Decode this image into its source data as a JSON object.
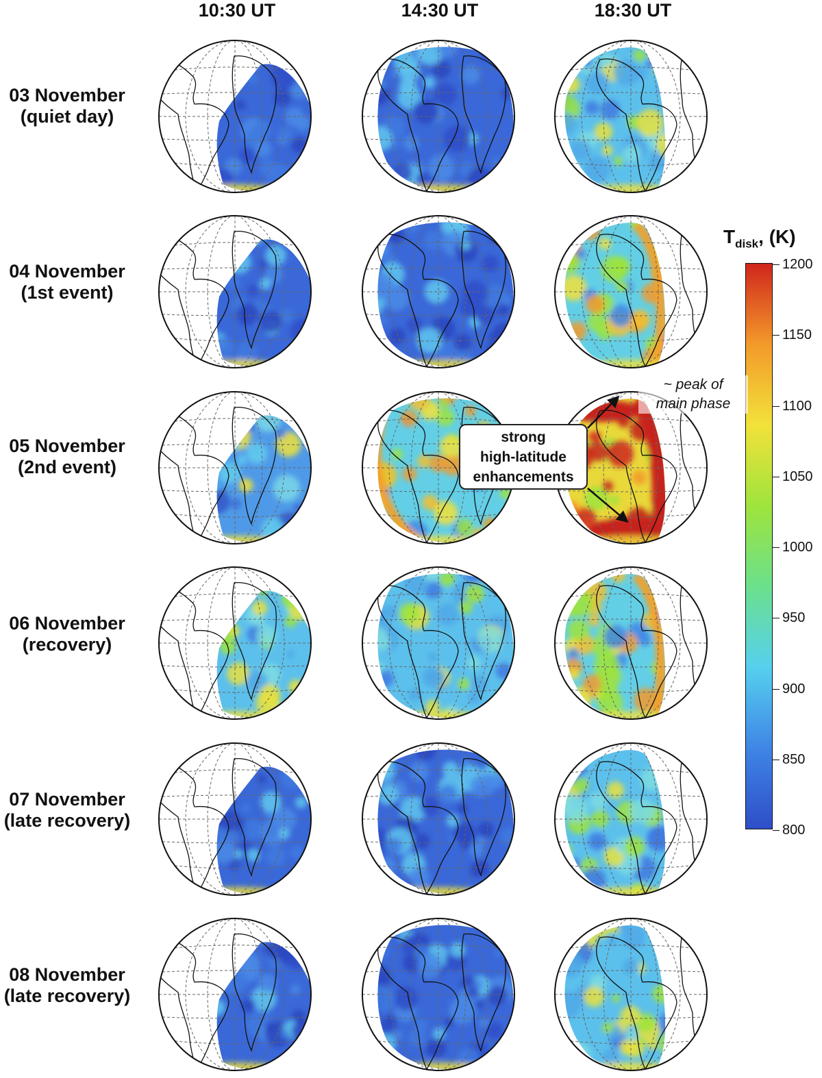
{
  "columns": [
    "10:30 UT",
    "14:30 UT",
    "18:30 UT"
  ],
  "rows": [
    {
      "date": "03 November",
      "note": "(quiet day)",
      "levels": {
        "10:30 UT": "cool",
        "14:30 UT": "cool",
        "18:30 UT": "moderate"
      }
    },
    {
      "date": "04 November",
      "note": "(1st event)",
      "levels": {
        "10:30 UT": "cool",
        "14:30 UT": "cool",
        "18:30 UT": "warm"
      }
    },
    {
      "date": "05 November",
      "note": "(2nd event)",
      "levels": {
        "10:30 UT": "cool-moderate",
        "14:30 UT": "warm",
        "18:30 UT": "hot"
      }
    },
    {
      "date": "06 November",
      "note": "(recovery)",
      "levels": {
        "10:30 UT": "moderate",
        "14:30 UT": "moderate",
        "18:30 UT": "warm"
      }
    },
    {
      "date": "07 November",
      "note": "(late recovery)",
      "levels": {
        "10:30 UT": "cool",
        "14:30 UT": "cool",
        "18:30 UT": "moderate"
      }
    },
    {
      "date": "08 November",
      "note": "(late recovery)",
      "levels": {
        "10:30 UT": "cool",
        "14:30 UT": "cool",
        "18:30 UT": "moderate"
      }
    }
  ],
  "colorbar": {
    "title_main": "T",
    "title_sub": "disk",
    "title_unit": ", (K)",
    "min": 800,
    "max": 1200,
    "ticks": [
      "1200",
      "1150",
      "1100",
      "1050",
      "1000",
      "950",
      "900",
      "850",
      "800"
    ],
    "colors": [
      "#2e4ec8",
      "#3f86e6",
      "#56d0ee",
      "#6be08c",
      "#9ee43c",
      "#f2e23a",
      "#f39a2a",
      "#d0261c"
    ]
  },
  "annotations": {
    "callout_lines": [
      "strong",
      "high-latitude",
      "enhancements"
    ],
    "peak_lines": [
      "~ peak of",
      "main phase"
    ]
  }
}
